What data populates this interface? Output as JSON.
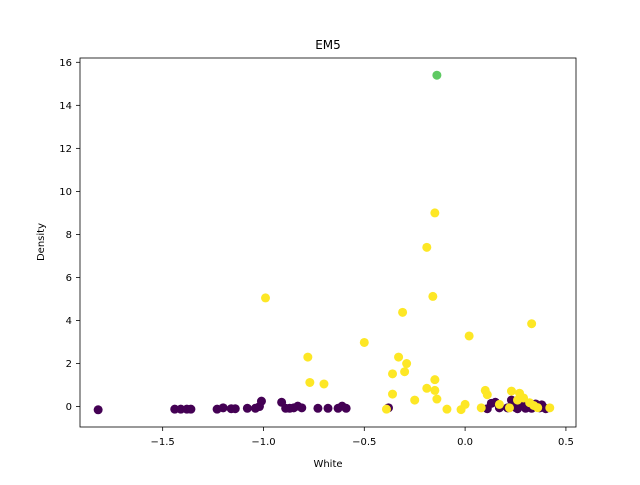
{
  "chart_data": {
    "type": "scatter",
    "title": "EM5",
    "xlabel": "White",
    "ylabel": "Density",
    "xlim": [
      -1.91,
      0.55
    ],
    "ylim": [
      -0.95,
      16.2
    ],
    "xticks": [
      -1.5,
      -1.0,
      -0.5,
      0.0,
      0.5
    ],
    "xtick_labels": [
      "−1.5",
      "−1.0",
      "−0.5",
      "0.0",
      "0.5"
    ],
    "yticks": [
      0,
      2,
      4,
      6,
      8,
      10,
      12,
      14,
      16
    ],
    "ytick_labels": [
      "0",
      "2",
      "4",
      "6",
      "8",
      "10",
      "12",
      "14",
      "16"
    ],
    "grid": false,
    "colors": {
      "purple": "#440154",
      "green": "#5ec962",
      "yellow": "#fde725"
    },
    "series": [
      {
        "color": "#440154",
        "points": [
          [
            -1.82,
            -0.15
          ],
          [
            -1.44,
            -0.12
          ],
          [
            -1.41,
            -0.12
          ],
          [
            -1.38,
            -0.12
          ],
          [
            -1.36,
            -0.12
          ],
          [
            -1.23,
            -0.12
          ],
          [
            -1.2,
            -0.06
          ],
          [
            -1.16,
            -0.1
          ],
          [
            -1.14,
            -0.1
          ],
          [
            -1.08,
            -0.08
          ],
          [
            -1.04,
            -0.08
          ],
          [
            -1.02,
            0.0
          ],
          [
            -1.01,
            0.25
          ],
          [
            -0.91,
            0.2
          ],
          [
            -0.89,
            -0.08
          ],
          [
            -0.87,
            -0.08
          ],
          [
            -0.85,
            -0.06
          ],
          [
            -0.83,
            0.02
          ],
          [
            -0.81,
            -0.06
          ],
          [
            -0.73,
            -0.08
          ],
          [
            -0.68,
            -0.08
          ],
          [
            -0.63,
            -0.08
          ],
          [
            -0.61,
            0.02
          ],
          [
            -0.59,
            -0.08
          ],
          [
            -0.38,
            -0.06
          ],
          [
            0.11,
            -0.1
          ],
          [
            0.13,
            0.15
          ],
          [
            0.15,
            0.2
          ],
          [
            0.17,
            -0.06
          ],
          [
            0.21,
            -0.06
          ],
          [
            0.23,
            0.3
          ],
          [
            0.25,
            -0.04
          ],
          [
            0.26,
            -0.1
          ],
          [
            0.27,
            0.02
          ],
          [
            0.28,
            0.18
          ],
          [
            0.29,
            0.1
          ],
          [
            0.3,
            -0.08
          ],
          [
            0.31,
            -0.04
          ],
          [
            0.33,
            -0.08
          ],
          [
            0.35,
            0.12
          ],
          [
            0.36,
            0.02
          ],
          [
            0.37,
            -0.06
          ],
          [
            0.38,
            0.08
          ],
          [
            0.39,
            -0.04
          ],
          [
            0.4,
            -0.1
          ]
        ]
      },
      {
        "color": "#5ec962",
        "points": [
          [
            -0.14,
            15.4
          ]
        ]
      },
      {
        "color": "#fde725",
        "points": [
          [
            -0.99,
            5.05
          ],
          [
            -0.78,
            2.3
          ],
          [
            -0.77,
            1.12
          ],
          [
            -0.7,
            1.05
          ],
          [
            -0.5,
            2.98
          ],
          [
            -0.39,
            -0.12
          ],
          [
            -0.36,
            1.52
          ],
          [
            -0.36,
            0.58
          ],
          [
            -0.33,
            2.3
          ],
          [
            -0.31,
            4.38
          ],
          [
            -0.3,
            1.62
          ],
          [
            -0.29,
            2.0
          ],
          [
            -0.25,
            0.3
          ],
          [
            -0.19,
            7.4
          ],
          [
            -0.19,
            0.85
          ],
          [
            -0.16,
            5.12
          ],
          [
            -0.15,
            9.0
          ],
          [
            -0.15,
            0.75
          ],
          [
            -0.15,
            1.25
          ],
          [
            -0.14,
            0.35
          ],
          [
            -0.09,
            -0.12
          ],
          [
            -0.02,
            -0.14
          ],
          [
            0.0,
            0.1
          ],
          [
            0.02,
            3.28
          ],
          [
            0.08,
            -0.06
          ],
          [
            0.1,
            0.75
          ],
          [
            0.11,
            0.55
          ],
          [
            0.17,
            0.1
          ],
          [
            0.22,
            -0.06
          ],
          [
            0.23,
            0.72
          ],
          [
            0.26,
            0.3
          ],
          [
            0.27,
            0.62
          ],
          [
            0.29,
            0.4
          ],
          [
            0.32,
            0.18
          ],
          [
            0.33,
            3.85
          ],
          [
            0.34,
            0.05
          ],
          [
            0.36,
            -0.05
          ],
          [
            0.42,
            -0.06
          ]
        ]
      }
    ]
  }
}
